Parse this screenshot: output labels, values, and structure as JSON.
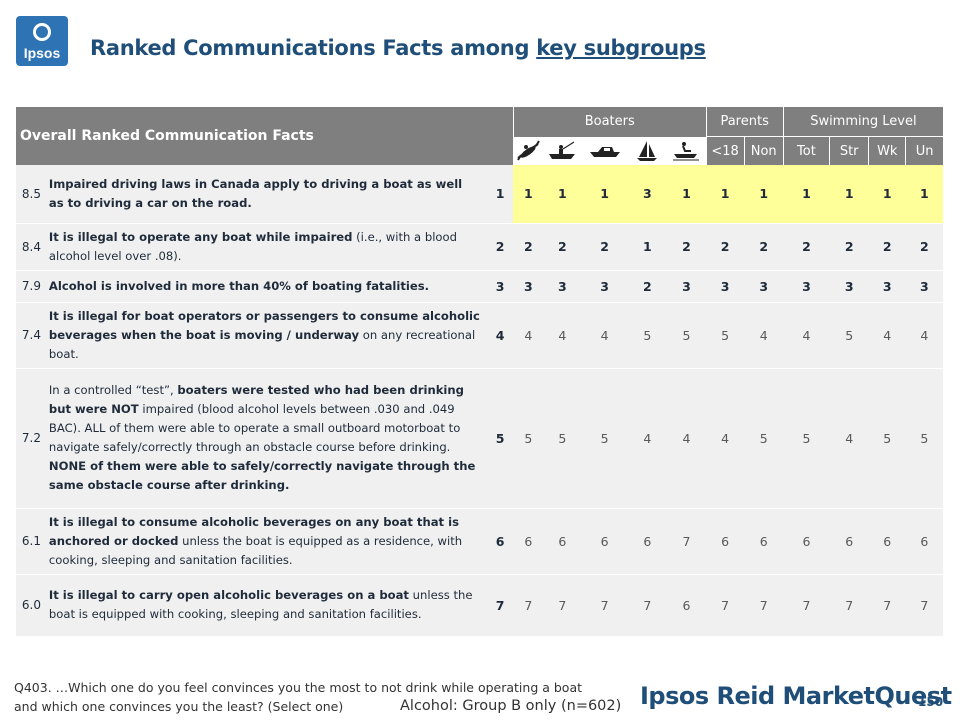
{
  "logo": {
    "text": "Ipsos"
  },
  "title": {
    "prefix": "Ranked Communications Facts among ",
    "link": "key subgroups"
  },
  "table": {
    "overall_header": "Overall Ranked Communication Facts",
    "groups": [
      "Boaters",
      "Parents",
      "Swimming Level"
    ],
    "boater_icons": [
      "kayak-icon",
      "fishing-boat-icon",
      "motorboat-icon",
      "sailboat-icon",
      "jetski-icon"
    ],
    "sub_headers": [
      "<18",
      "Non",
      "Tot",
      "Str",
      "Wk",
      "Un"
    ],
    "rows": [
      {
        "score": "8.5",
        "fact_parts": [
          {
            "t": "Impaired driving laws in Canada apply to driving a boat as well as to driving a car on the road.",
            "b": true
          }
        ],
        "overall": "1",
        "values": [
          "1",
          "1",
          "1",
          "3",
          "1",
          "1",
          "1",
          "1",
          "1",
          "1",
          "1"
        ]
      },
      {
        "score": "8.4",
        "fact_parts": [
          {
            "t": "It is illegal to operate any boat while impaired",
            "b": true
          },
          {
            "t": " (i.e., with a blood alcohol level over .08).",
            "b": false
          }
        ],
        "overall": "2",
        "values": [
          "2",
          "2",
          "2",
          "1",
          "2",
          "2",
          "2",
          "2",
          "2",
          "2",
          "2"
        ]
      },
      {
        "score": "7.9",
        "fact_parts": [
          {
            "t": "Alcohol is involved in more than 40% of boating fatalities.",
            "b": true
          }
        ],
        "overall": "3",
        "values": [
          "3",
          "3",
          "3",
          "2",
          "3",
          "3",
          "3",
          "3",
          "3",
          "3",
          "3"
        ]
      },
      {
        "score": "7.4",
        "fact_parts": [
          {
            "t": "It is illegal for boat operators or passengers to consume alcoholic beverages when the boat is moving / underway",
            "b": true
          },
          {
            "t": " on any recreational boat.",
            "b": false
          }
        ],
        "overall": "4",
        "values": [
          "4",
          "4",
          "4",
          "5",
          "5",
          "5",
          "4",
          "4",
          "5",
          "4",
          "4"
        ]
      },
      {
        "score": "7.2",
        "fact_parts": [
          {
            "t": "In a controlled “test”, ",
            "b": false
          },
          {
            "t": "boaters were tested who had been drinking but were NOT",
            "b": true
          },
          {
            "t": " impaired (blood alcohol levels between .030 and .049 BAC).  ALL of them were able to operate a small outboard motorboat to navigate safely/correctly through an obstacle course before drinking.  ",
            "b": false
          },
          {
            "t": "NONE of them were able to safely/correctly navigate through the same obstacle course after drinking.",
            "b": true
          }
        ],
        "overall": "5",
        "values": [
          "5",
          "5",
          "5",
          "4",
          "4",
          "4",
          "5",
          "5",
          "4",
          "5",
          "5"
        ]
      },
      {
        "score": "6.1",
        "fact_parts": [
          {
            "t": "It is illegal to consume alcoholic beverages on any boat that is anchored or docked",
            "b": true
          },
          {
            "t": " unless the boat is equipped as a residence, with cooking, sleeping and sanitation facilities.",
            "b": false
          }
        ],
        "overall": "6",
        "values": [
          "6",
          "6",
          "6",
          "6",
          "7",
          "6",
          "6",
          "6",
          "6",
          "6",
          "6"
        ]
      },
      {
        "score": "6.0",
        "fact_parts": [
          {
            "t": "It is illegal to carry open alcoholic beverages on a boat",
            "b": true
          },
          {
            "t": " unless the boat is equipped with cooking, sleeping and sanitation facilities.",
            "b": false
          }
        ],
        "overall": "7",
        "values": [
          "7",
          "7",
          "7",
          "7",
          "6",
          "7",
          "7",
          "7",
          "7",
          "7",
          "7"
        ]
      }
    ]
  },
  "footer": {
    "question_line1": "Q403. …Which one do you feel convinces you the most to not drink while operating a boat",
    "question_line2": "and which one convinces you the least?  (Select one)",
    "base": "Alcohol: Group B only (n=602)",
    "brand": "Ipsos Reid MarketQuest",
    "page": "150"
  },
  "colors": {
    "header_gray": "#7f7f7f",
    "highlight_yellow": "#ffff99",
    "title_blue": "#1f4e79",
    "row_bg": "#f0f0f0"
  }
}
